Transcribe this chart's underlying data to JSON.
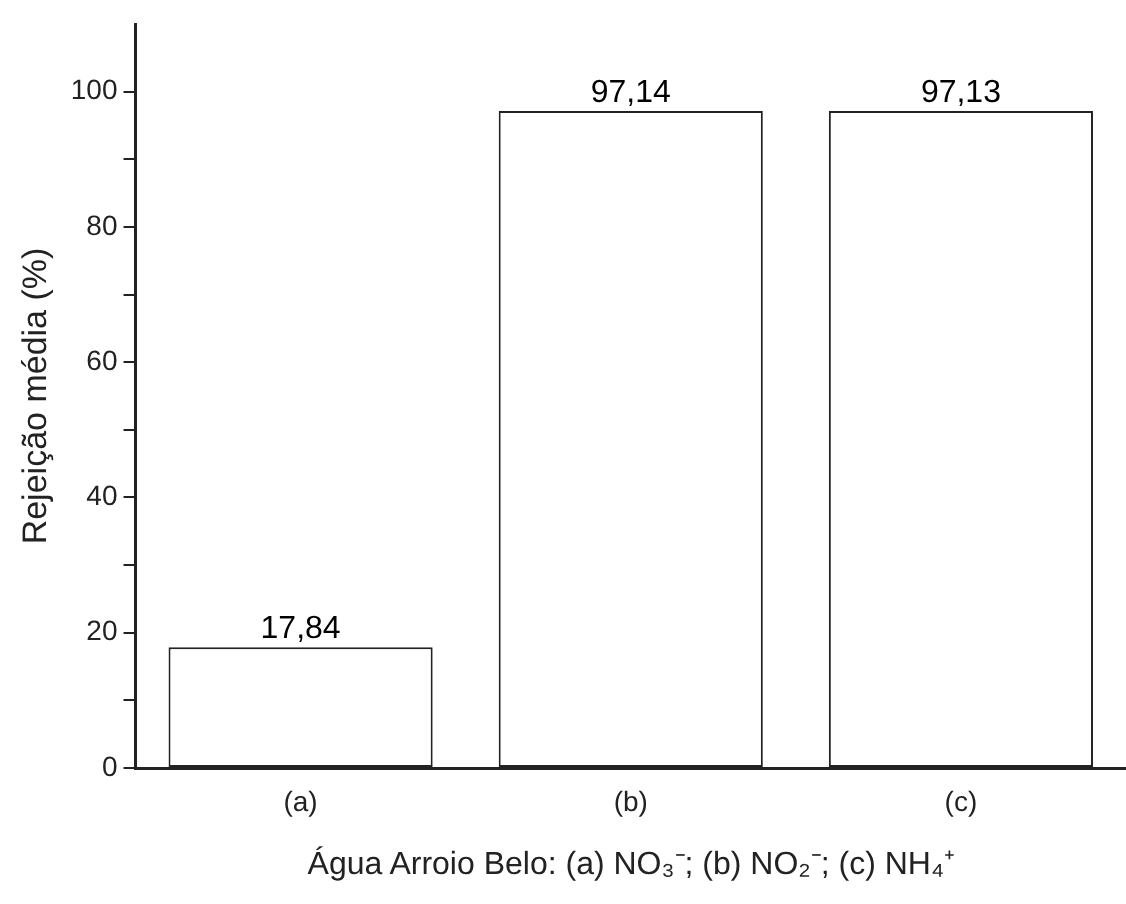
{
  "chart_data": {
    "type": "bar",
    "xlabel": "Água Arroio Belo: (a) NO₃⁻; (b) NO₂⁻; (c) NH₄⁺",
    "ylabel": "Rejeição média (%)",
    "categories": [
      "(a)",
      "(b)",
      "(c)"
    ],
    "values": [
      17.84,
      97.14,
      97.13
    ],
    "value_labels": [
      "17,84",
      "97,14",
      "97,13"
    ],
    "color": "#ffffff",
    "ylim": [
      0,
      110
    ],
    "yticks": [
      0,
      {
        "value": 10,
        "label": null
      },
      20,
      {
        "value": 30,
        "label": null
      },
      40,
      {
        "value": 50,
        "label": null
      },
      60,
      {
        "value": 70,
        "label": null
      },
      80,
      {
        "value": 90,
        "label": null
      },
      100
    ],
    "grid": false,
    "legend": false
  }
}
